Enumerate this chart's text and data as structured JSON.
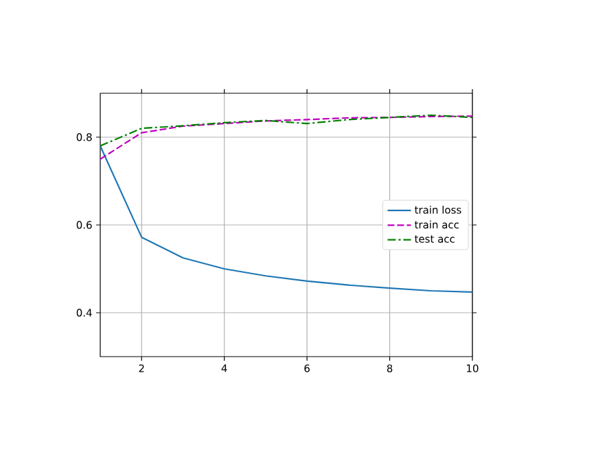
{
  "chart_data": {
    "type": "line",
    "x": [
      1,
      2,
      3,
      4,
      5,
      6,
      7,
      8,
      9,
      10
    ],
    "series": [
      {
        "name": "train loss",
        "color": "#1f77b4",
        "line_style": "solid",
        "values": [
          0.78,
          0.572,
          0.525,
          0.5,
          0.484,
          0.472,
          0.463,
          0.456,
          0.45,
          0.447
        ]
      },
      {
        "name": "train acc",
        "color": "#bf00bf",
        "line_style": "dashed",
        "values": [
          0.75,
          0.81,
          0.825,
          0.831,
          0.837,
          0.84,
          0.844,
          0.845,
          0.847,
          0.848
        ]
      },
      {
        "name": "test acc",
        "color": "#008000",
        "line_style": "dashdot",
        "values": [
          0.78,
          0.82,
          0.826,
          0.833,
          0.838,
          0.831,
          0.84,
          0.845,
          0.85,
          0.845
        ]
      }
    ],
    "xlim": [
      1,
      10
    ],
    "ylim": [
      0.3,
      0.9
    ],
    "xticks": [
      2,
      4,
      6,
      8,
      10
    ],
    "yticks": [
      0.4,
      0.6,
      0.8
    ],
    "grid": true,
    "legend": "right"
  }
}
